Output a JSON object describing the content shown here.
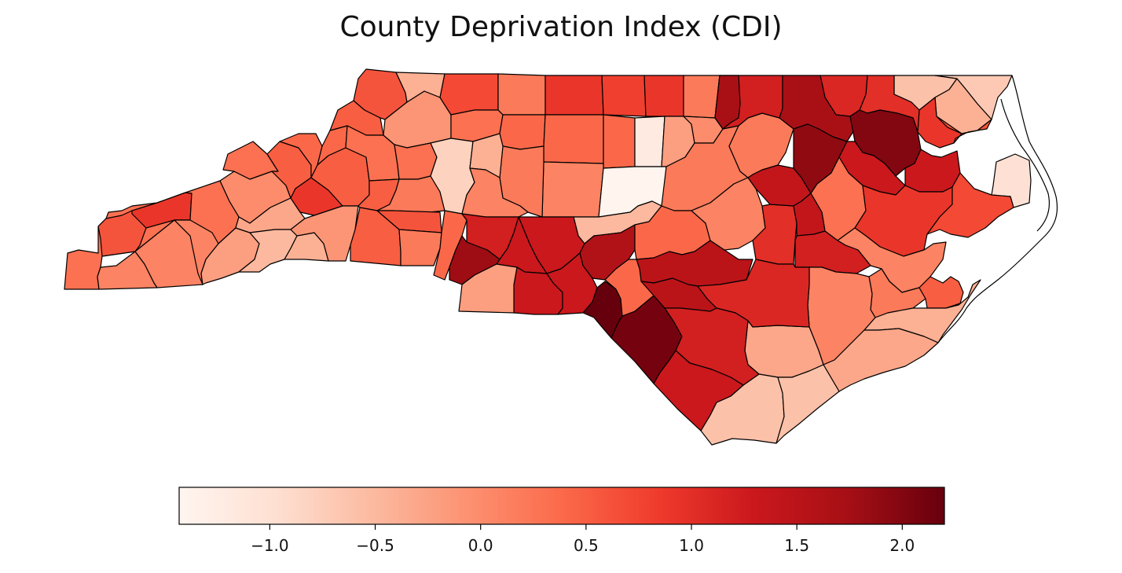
{
  "title": "County Deprivation Index (CDI)",
  "colorbar": {
    "min": -1.43,
    "max": 2.2,
    "ticks": [
      {
        "value": -1.0,
        "label": "−1.0"
      },
      {
        "value": -0.5,
        "label": "−0.5"
      },
      {
        "value": 0.0,
        "label": "0.0"
      },
      {
        "value": 0.5,
        "label": "0.5"
      },
      {
        "value": 1.0,
        "label": "1.0"
      },
      {
        "value": 1.5,
        "label": "1.5"
      },
      {
        "value": 2.0,
        "label": "2.0"
      }
    ],
    "colormap": [
      "#fff5f0",
      "#fee0d2",
      "#fcbba1",
      "#fc9272",
      "#fb6a4a",
      "#ef3b2c",
      "#cb181d",
      "#a50f15",
      "#67000d"
    ]
  },
  "counties": [
    {
      "id": "c1",
      "value": 0.3
    },
    {
      "id": "c2",
      "value": 0.1
    },
    {
      "id": "c3",
      "value": 0.1
    },
    {
      "id": "c4",
      "value": 0.6
    },
    {
      "id": "c5",
      "value": 0.9
    },
    {
      "id": "c6",
      "value": 0.3
    },
    {
      "id": "c7",
      "value": 0.1
    },
    {
      "id": "c8",
      "value": -0.2
    },
    {
      "id": "c9",
      "value": 0.0
    },
    {
      "id": "c10",
      "value": 0.3
    },
    {
      "id": "c11",
      "value": -0.3
    },
    {
      "id": "c12",
      "value": -0.5
    },
    {
      "id": "c13",
      "value": -0.4
    },
    {
      "id": "c14",
      "value": 0.5
    },
    {
      "id": "c15",
      "value": 0.9
    },
    {
      "id": "c16",
      "value": 0.4
    },
    {
      "id": "c17",
      "value": 0.4
    },
    {
      "id": "c18",
      "value": 0.5
    },
    {
      "id": "c19",
      "value": -0.1
    },
    {
      "id": "c20",
      "value": 0.5
    },
    {
      "id": "c21",
      "value": 0.3
    },
    {
      "id": "c22",
      "value": 0.5
    },
    {
      "id": "c23",
      "value": 0.5
    },
    {
      "id": "c24",
      "value": 0.6
    },
    {
      "id": "c25",
      "value": -0.4
    },
    {
      "id": "c26",
      "value": -0.1
    },
    {
      "id": "c27",
      "value": 0.3
    },
    {
      "id": "c28",
      "value": 0.2
    },
    {
      "id": "c29",
      "value": 0.6
    },
    {
      "id": "c30",
      "value": 0.2
    },
    {
      "id": "c31",
      "value": 0.7
    },
    {
      "id": "c32",
      "value": 0.2
    },
    {
      "id": "c33",
      "value": 0.3
    },
    {
      "id": "c34",
      "value": 0.9
    },
    {
      "id": "c35",
      "value": 0.4
    },
    {
      "id": "c36",
      "value": 0.4
    },
    {
      "id": "c37",
      "value": 0.8
    },
    {
      "id": "c38",
      "value": 0.9
    },
    {
      "id": "c39",
      "value": 0.4
    },
    {
      "id": "c40",
      "value": 0.2
    },
    {
      "id": "c41",
      "value": 0.1
    },
    {
      "id": "c42",
      "value": -1.2
    },
    {
      "id": "c43",
      "value": -0.2
    },
    {
      "id": "c44",
      "value": 0.0
    },
    {
      "id": "c45",
      "value": 0.2
    },
    {
      "id": "c46",
      "value": -0.8
    },
    {
      "id": "c47",
      "value": -0.4
    },
    {
      "id": "c48",
      "value": 0.1
    },
    {
      "id": "c49",
      "value": -1.4
    },
    {
      "id": "c50",
      "value": 0.2
    },
    {
      "id": "c51",
      "value": -0.5
    },
    {
      "id": "c52",
      "value": 0.4
    },
    {
      "id": "c53",
      "value": 1.2
    },
    {
      "id": "c54",
      "value": 1.3
    },
    {
      "id": "c55",
      "value": 1.8
    },
    {
      "id": "c56",
      "value": 1.3
    },
    {
      "id": "c57",
      "value": 1.6
    },
    {
      "id": "c58",
      "value": 0.4
    },
    {
      "id": "c59",
      "value": 1.5
    },
    {
      "id": "c60",
      "value": 0.1
    },
    {
      "id": "c61",
      "value": 1.0
    },
    {
      "id": "c62",
      "value": 1.4
    },
    {
      "id": "c63",
      "value": 0.2
    },
    {
      "id": "c64",
      "value": 1.2
    },
    {
      "id": "c65",
      "value": 1.7
    },
    {
      "id": "c66",
      "value": -0.6
    },
    {
      "id": "c67",
      "value": -0.4
    },
    {
      "id": "c68",
      "value": -0.7
    },
    {
      "id": "c69",
      "value": 0.9
    },
    {
      "id": "c70",
      "value": 0.6
    },
    {
      "id": "c71",
      "value": 1.0
    },
    {
      "id": "c72",
      "value": 1.1
    },
    {
      "id": "c73",
      "value": 1.7
    },
    {
      "id": "c74",
      "value": 1.9
    },
    {
      "id": "c75",
      "value": 2.0
    },
    {
      "id": "c76",
      "value": 1.3
    },
    {
      "id": "c77",
      "value": -1.0
    },
    {
      "id": "c78",
      "value": 1.3
    },
    {
      "id": "c79",
      "value": 0.3
    },
    {
      "id": "c80",
      "value": 0.9
    },
    {
      "id": "c81",
      "value": 0.7
    },
    {
      "id": "c82",
      "value": 0.1
    },
    {
      "id": "c83",
      "value": 1.4
    },
    {
      "id": "c84",
      "value": 1.2
    },
    {
      "id": "c85",
      "value": 0.2
    },
    {
      "id": "c86",
      "value": 0.1
    },
    {
      "id": "c87",
      "value": 0.5
    },
    {
      "id": "c88",
      "value": -0.4
    },
    {
      "id": "c89",
      "value": 2.2
    },
    {
      "id": "c90",
      "value": 2.1
    },
    {
      "id": "c91",
      "value": 1.3
    },
    {
      "id": "c92",
      "value": 1.3
    },
    {
      "id": "c93",
      "value": -0.2
    },
    {
      "id": "c94",
      "value": -0.3
    },
    {
      "id": "c95",
      "value": -0.3
    },
    {
      "id": "c96",
      "value": -0.6
    },
    {
      "id": "c97",
      "value": -0.6
    }
  ]
}
